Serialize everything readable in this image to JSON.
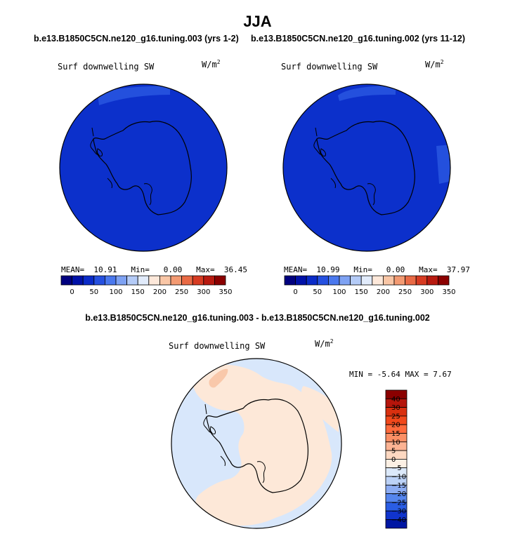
{
  "title": "JJA",
  "panels": [
    {
      "case": "b.e13.B1850C5CN.ne120_g16.tuning.003 (yrs 1-2)",
      "variable": "Surf downwelling SW",
      "units_base": "W/m",
      "units_exp": "2",
      "stats": {
        "mean_label": "MEAN=",
        "mean": "10.91",
        "min_label": "Min=",
        "min": "0.00",
        "max_label": "Max=",
        "max": "36.45"
      }
    },
    {
      "case": "b.e13.B1850C5CN.ne120_g16.tuning.002 (yrs 11-12)",
      "variable": "Surf downwelling SW",
      "units_base": "W/m",
      "units_exp": "2",
      "stats": {
        "mean_label": "MEAN=",
        "mean": "10.99",
        "min_label": "Min=",
        "min": "0.00",
        "max_label": "Max=",
        "max": "37.97"
      }
    }
  ],
  "abs_colorbar": {
    "tick_labels": [
      "0",
      "50",
      "100",
      "150",
      "200",
      "250",
      "300",
      "350"
    ],
    "colors": [
      "#00007f",
      "#0011a8",
      "#0a2bc8",
      "#2550e0",
      "#4a78ee",
      "#7ea2f3",
      "#b4cbf7",
      "#e1ebfb",
      "#fde8da",
      "#f9c6a6",
      "#f39a72",
      "#e96a45",
      "#d73b22",
      "#b81a10",
      "#8b0000"
    ]
  },
  "difference": {
    "title": "b.e13.B1850C5CN.ne120_g16.tuning.003 - b.e13.B1850C5CN.ne120_g16.tuning.002",
    "variable": "Surf downwelling SW",
    "units_base": "W/m",
    "units_exp": "2",
    "stats_text": "MIN =  -5.64 MAX =   7.67",
    "colorbar": {
      "labels": [
        "40",
        "30",
        "25",
        "20",
        "15",
        "10",
        "5",
        "0",
        "−5",
        "−10",
        "−15",
        "−20",
        "−25",
        "−30",
        "−40"
      ],
      "colors": [
        "#8b0000",
        "#b5150b",
        "#d9300f",
        "#f1481b",
        "#ff6a3c",
        "#fb8f65",
        "#fcb393",
        "#fdd8c1",
        "#fcf0e4",
        "#dce9fa",
        "#bcd2f7",
        "#8cacf3",
        "#5585ee",
        "#2a5de4",
        "#1034cd",
        "#0016a3"
      ]
    }
  },
  "colors": {
    "field_blue": "#0c30cb",
    "field_light_blue": "#2450dd",
    "diff_blue": "#d8e7fb",
    "diff_peach": "#fde8d8",
    "diff_orange": "#f9c8aa"
  }
}
